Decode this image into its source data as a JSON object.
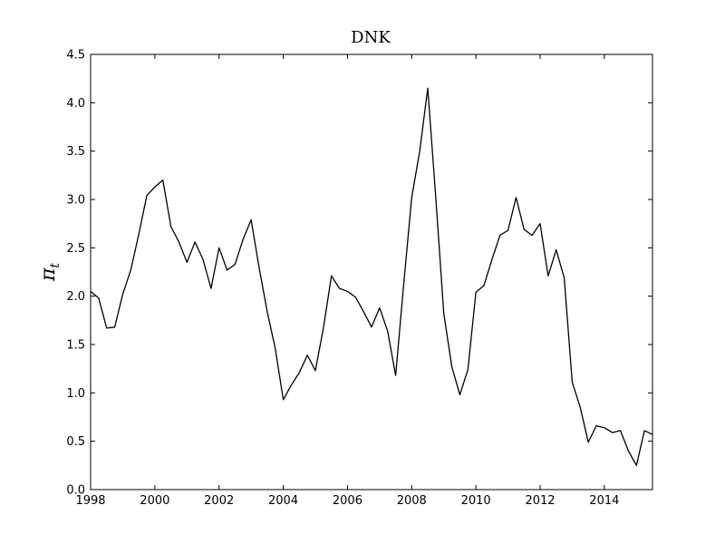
{
  "chart_data": {
    "type": "line",
    "title": "DNK",
    "xlabel": "",
    "ylabel": "π",
    "ylabel_subscript": "t",
    "xlim": [
      1998,
      2015.5
    ],
    "ylim": [
      0.0,
      4.5
    ],
    "grid": false,
    "legend": "none",
    "line_color": "#000000",
    "x_ticks": [
      1998,
      2000,
      2002,
      2004,
      2006,
      2008,
      2010,
      2012,
      2014
    ],
    "x_tick_labels": [
      "1998",
      "2000",
      "2002",
      "2004",
      "2006",
      "2008",
      "2010",
      "2012",
      "2014"
    ],
    "y_ticks": [
      0.0,
      0.5,
      1.0,
      1.5,
      2.0,
      2.5,
      3.0,
      3.5,
      4.0,
      4.5
    ],
    "y_tick_labels": [
      "0.0",
      "0.5",
      "1.0",
      "1.5",
      "2.0",
      "2.5",
      "3.0",
      "3.5",
      "4.0",
      "4.5"
    ],
    "series": [
      {
        "x": [
          1998.0,
          1998.25,
          1998.5,
          1998.75,
          1999.0,
          1999.25,
          1999.5,
          1999.75,
          2000.0,
          2000.25,
          2000.5,
          2000.75,
          2001.0,
          2001.25,
          2001.5,
          2001.75,
          2002.0,
          2002.25,
          2002.5,
          2002.75,
          2003.0,
          2003.25,
          2003.5,
          2003.75,
          2004.0,
          2004.25,
          2004.5,
          2004.75,
          2005.0,
          2005.25,
          2005.5,
          2005.75,
          2006.0,
          2006.25,
          2006.5,
          2006.75,
          2007.0,
          2007.25,
          2007.5,
          2007.75,
          2008.0,
          2008.25,
          2008.5,
          2008.75,
          2009.0,
          2009.25,
          2009.5,
          2009.75,
          2010.0,
          2010.25,
          2010.5,
          2010.75,
          2011.0,
          2011.25,
          2011.5,
          2011.75,
          2012.0,
          2012.25,
          2012.5,
          2012.75,
          2013.0,
          2013.25,
          2013.5,
          2013.75,
          2014.0,
          2014.25,
          2014.5,
          2014.75,
          2015.0,
          2015.25,
          2015.5
        ],
        "y": [
          2.05,
          1.98,
          1.67,
          1.68,
          2.02,
          2.27,
          2.64,
          3.04,
          3.13,
          3.2,
          2.72,
          2.56,
          2.35,
          2.56,
          2.38,
          2.08,
          2.5,
          2.27,
          2.33,
          2.59,
          2.79,
          2.29,
          1.84,
          1.46,
          0.93,
          1.08,
          1.21,
          1.39,
          1.23,
          1.67,
          2.21,
          2.08,
          2.05,
          1.99,
          1.84,
          1.68,
          1.88,
          1.64,
          1.18,
          2.12,
          3.02,
          3.5,
          4.15,
          3.02,
          1.82,
          1.27,
          0.98,
          1.24,
          2.04,
          2.11,
          2.38,
          2.63,
          2.68,
          3.02,
          2.69,
          2.63,
          2.75,
          2.21,
          2.48,
          2.19,
          1.11,
          0.85,
          0.49,
          0.66,
          0.64,
          0.59,
          0.61,
          0.4,
          0.25,
          0.61,
          0.57
        ]
      }
    ]
  }
}
